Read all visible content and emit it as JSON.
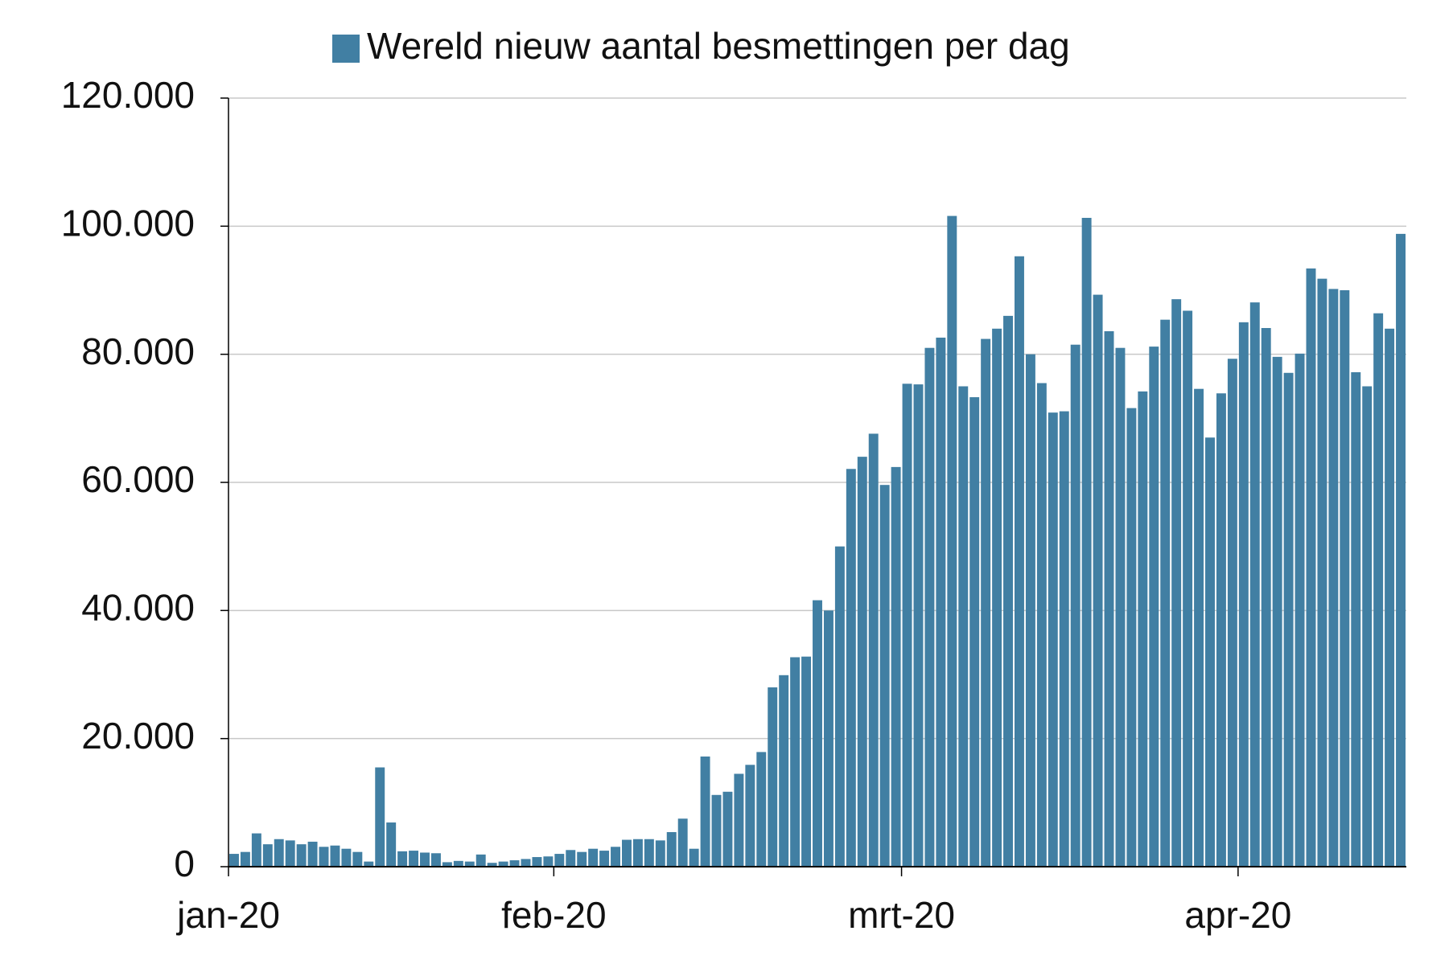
{
  "chart_data": {
    "type": "bar",
    "legend_label": "Wereld nieuw aantal besmettingen per dag",
    "color": "#417fa3",
    "categories": [
      "jan-20",
      null,
      null,
      null,
      null,
      null,
      null,
      null,
      null,
      null,
      null,
      null,
      null,
      null,
      null,
      null,
      null,
      null,
      null,
      null,
      null,
      null,
      null,
      null,
      null,
      null,
      null,
      null,
      null,
      "feb-20",
      null,
      null,
      null,
      null,
      null,
      null,
      null,
      null,
      null,
      null,
      null,
      null,
      null,
      null,
      null,
      null,
      null,
      null,
      null,
      null,
      null,
      null,
      null,
      null,
      null,
      null,
      null,
      null,
      null,
      null,
      "mrt-20",
      null,
      null,
      null,
      null,
      null,
      null,
      null,
      null,
      null,
      null,
      null,
      null,
      null,
      null,
      null,
      null,
      null,
      null,
      null,
      null,
      null,
      null,
      null,
      null,
      null,
      null,
      null,
      null,
      null,
      "apr-20",
      null,
      null,
      null,
      null,
      null,
      null,
      null,
      null,
      null,
      null,
      null,
      null,
      null,
      null
    ],
    "values": [
      2000,
      2300,
      5200,
      3500,
      4300,
      4100,
      3500,
      3900,
      3100,
      3300,
      2800,
      2300,
      800,
      15500,
      6900,
      2400,
      2500,
      2200,
      2100,
      700,
      900,
      800,
      1900,
      600,
      800,
      1000,
      1200,
      1500,
      1600,
      2000,
      2600,
      2300,
      2800,
      2500,
      3100,
      4200,
      4300,
      4300,
      4100,
      5400,
      7500,
      2800,
      17200,
      11200,
      11700,
      14500,
      15900,
      17900,
      28000,
      29900,
      32700,
      32800,
      41600,
      40000,
      50000,
      62100,
      64000,
      67600,
      59600,
      62400,
      75400,
      75300,
      81000,
      82600,
      101600,
      75000,
      73300,
      82400,
      84000,
      86000,
      95300,
      80000,
      75500,
      70900,
      71100,
      81500,
      101300,
      89300,
      83600,
      81000,
      71600,
      74200,
      81200,
      85400,
      88600,
      86800,
      74600,
      67000,
      73900,
      79300,
      85000,
      88100,
      84100,
      79600,
      77100,
      80100,
      93400,
      91800,
      90200,
      90000,
      77200,
      75000,
      86400,
      84000,
      98800
    ],
    "ylim": [
      0,
      120000
    ],
    "yticks": [
      0,
      {
        "value": 20000,
        "label": "20.000"
      },
      {
        "value": 40000,
        "label": "40.000"
      },
      {
        "value": 60000,
        "label": "60.000"
      },
      {
        "value": 80000,
        "label": "80.000"
      },
      {
        "value": 100000,
        "label": "100.000"
      },
      {
        "value": 120000,
        "label": "120.000"
      }
    ],
    "grid": true
  }
}
